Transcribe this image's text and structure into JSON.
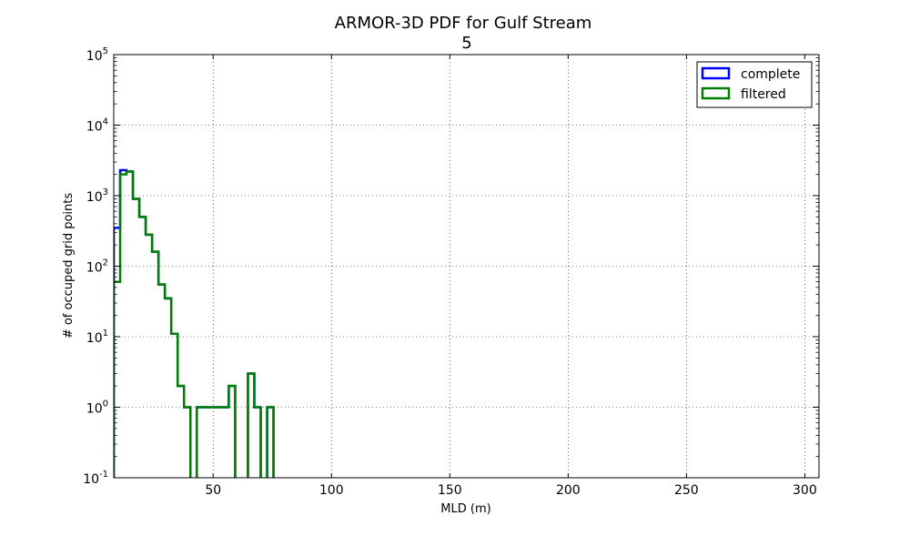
{
  "chart_data": {
    "type": "histogram-step",
    "title_line1": "ARMOR-3D PDF for Gulf Stream",
    "title_line2": "5",
    "xlabel": "MLD (m)",
    "ylabel": "# of occuped grid points",
    "xlim": [
      8,
      306
    ],
    "ylim": [
      0.1,
      100000
    ],
    "yscale": "log",
    "grid": true,
    "legend_position": "top-right",
    "x_ticks": [
      50,
      100,
      150,
      200,
      250,
      300
    ],
    "x_tick_labels": [
      "50",
      "100",
      "150",
      "200",
      "250",
      "300"
    ],
    "y_ticks": [
      {
        "value": 0.1,
        "base": "10",
        "exp": "-1"
      },
      {
        "value": 1,
        "base": "10",
        "exp": "0"
      },
      {
        "value": 10,
        "base": "10",
        "exp": "1"
      },
      {
        "value": 100,
        "base": "10",
        "exp": "2"
      },
      {
        "value": 1000,
        "base": "10",
        "exp": "3"
      },
      {
        "value": 10000,
        "base": "10",
        "exp": "4"
      },
      {
        "value": 100000,
        "base": "10",
        "exp": "5"
      }
    ],
    "bin_edges": [
      8,
      10.7,
      13.4,
      16.1,
      18.8,
      21.5,
      24.2,
      26.9,
      29.6,
      32.3,
      35.0,
      37.7,
      40.4,
      43.1,
      45.8,
      48.5,
      51.2,
      53.9,
      56.6,
      59.3,
      62.0,
      64.7,
      67.4,
      70.1,
      72.8,
      75.5,
      78.2,
      80.9
    ],
    "series": [
      {
        "name": "complete",
        "color": "#0000ff",
        "values": [
          350,
          2300,
          2200,
          900,
          500,
          280,
          160,
          55,
          35,
          11,
          2,
          1,
          0,
          1,
          1,
          1,
          1,
          1,
          2,
          0,
          0,
          3,
          1,
          0,
          1,
          0,
          0
        ]
      },
      {
        "name": "filtered",
        "color": "#007f00",
        "values": [
          60,
          2000,
          2200,
          900,
          500,
          280,
          160,
          55,
          35,
          11,
          2,
          1,
          0,
          1,
          1,
          1,
          1,
          1,
          2,
          0,
          0,
          3,
          1,
          0,
          1,
          0,
          0
        ]
      }
    ]
  }
}
